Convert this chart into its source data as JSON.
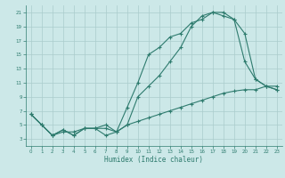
{
  "xlabel": "Humidex (Indice chaleur)",
  "bg_color": "#cce8e8",
  "grid_color": "#aacccc",
  "line_color": "#2e7b6e",
  "xlim": [
    -0.5,
    23.5
  ],
  "ylim": [
    2,
    22
  ],
  "xticks": [
    0,
    1,
    2,
    3,
    4,
    5,
    6,
    7,
    8,
    9,
    10,
    11,
    12,
    13,
    14,
    15,
    16,
    17,
    18,
    19,
    20,
    21,
    22,
    23
  ],
  "yticks": [
    3,
    5,
    7,
    9,
    11,
    13,
    15,
    17,
    19,
    21
  ],
  "line1_x": [
    0,
    1,
    2,
    3,
    4,
    5,
    6,
    7,
    8,
    9,
    10,
    11,
    12,
    13,
    14,
    15,
    16,
    17,
    18,
    19,
    20,
    21,
    22,
    23
  ],
  "line1_y": [
    6.5,
    5.0,
    3.5,
    4.3,
    3.5,
    4.5,
    4.5,
    3.5,
    4.0,
    7.5,
    11.0,
    15.0,
    16.0,
    17.5,
    18.0,
    19.5,
    20.0,
    21.0,
    21.0,
    20.0,
    18.0,
    11.5,
    10.5,
    10.0
  ],
  "line2_x": [
    0,
    1,
    2,
    3,
    4,
    5,
    6,
    7,
    8,
    9,
    10,
    11,
    12,
    13,
    14,
    15,
    16,
    17,
    18,
    19,
    20,
    21,
    22,
    23
  ],
  "line2_y": [
    6.5,
    5.0,
    3.5,
    4.3,
    3.5,
    4.5,
    4.5,
    5.0,
    4.0,
    5.0,
    9.0,
    10.5,
    12.0,
    14.0,
    16.0,
    19.0,
    20.5,
    21.0,
    20.5,
    20.0,
    14.0,
    11.5,
    10.5,
    10.0
  ],
  "line3_x": [
    0,
    1,
    2,
    3,
    4,
    5,
    6,
    7,
    8,
    9,
    10,
    11,
    12,
    13,
    14,
    15,
    16,
    17,
    18,
    19,
    20,
    21,
    22,
    23
  ],
  "line3_y": [
    6.5,
    5.0,
    3.5,
    4.0,
    4.0,
    4.5,
    4.5,
    4.5,
    4.0,
    5.0,
    5.5,
    6.0,
    6.5,
    7.0,
    7.5,
    8.0,
    8.5,
    9.0,
    9.5,
    9.8,
    10.0,
    10.0,
    10.5,
    10.5
  ]
}
